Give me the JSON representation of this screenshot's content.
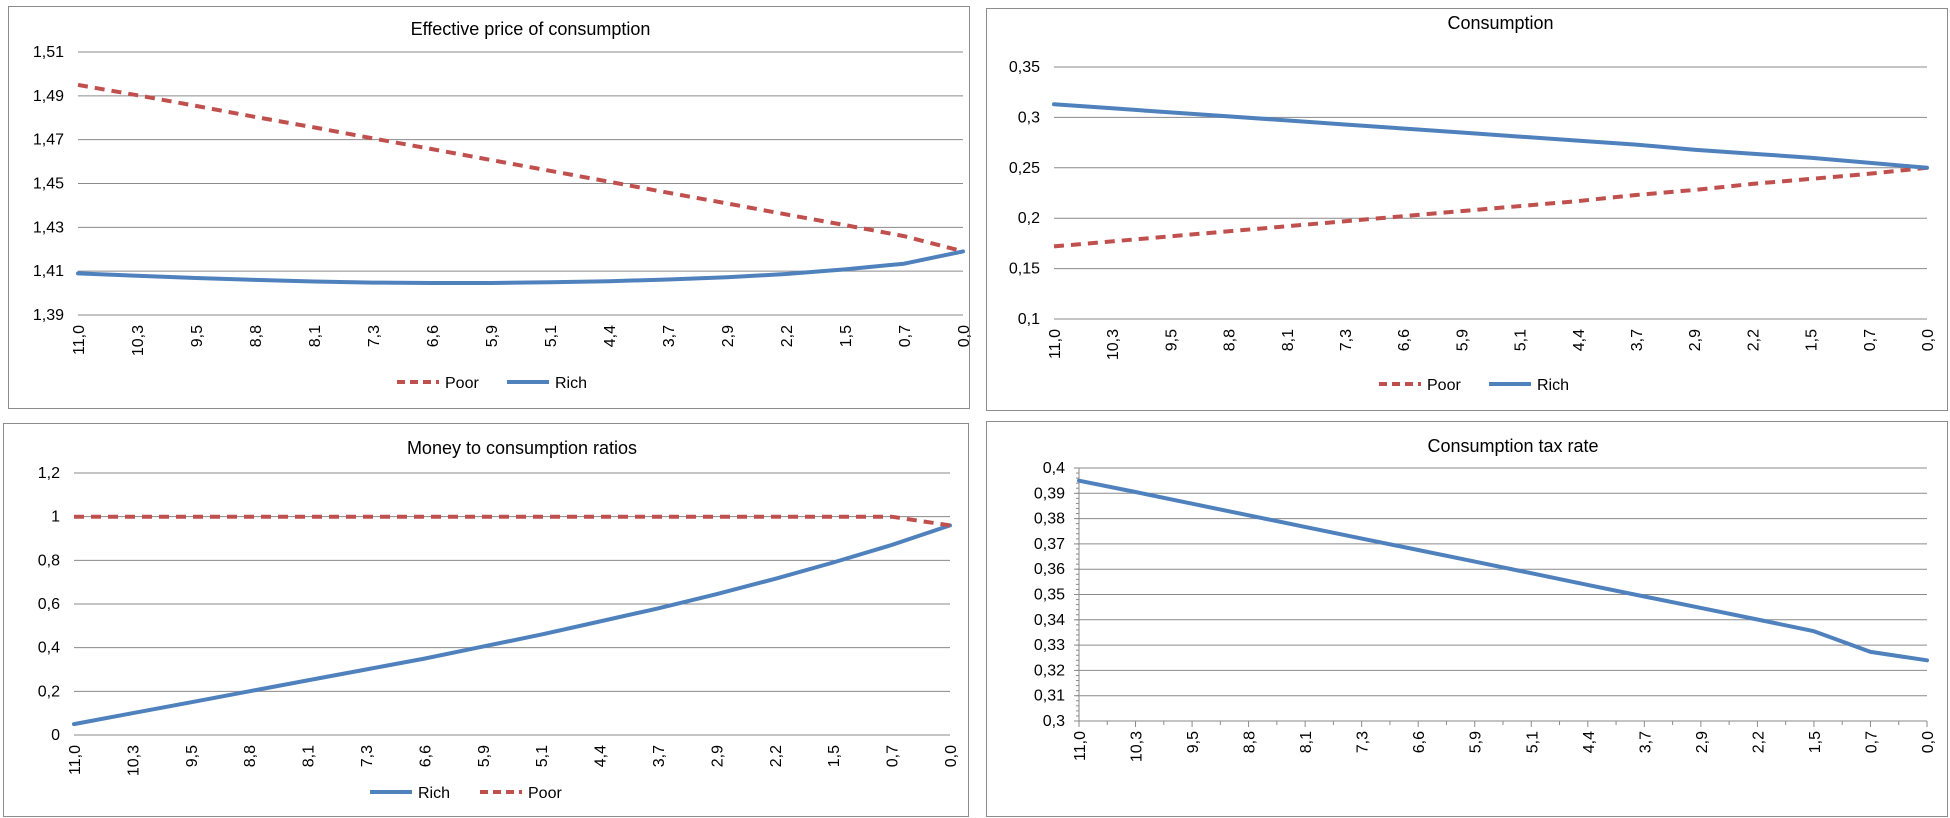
{
  "chart_data": [
    {
      "type": "line",
      "title": "Effective price of consumption",
      "categories": [
        "11,0",
        "10,3",
        "9,5",
        "8,8",
        "8,1",
        "7,3",
        "6,6",
        "5,9",
        "5,1",
        "4,4",
        "3,7",
        "2,9",
        "2,2",
        "1,5",
        "0,7",
        "0,0"
      ],
      "ylim": [
        1.39,
        1.51
      ],
      "yticks": [
        "1,39",
        "1,41",
        "1,43",
        "1,45",
        "1,47",
        "1,49",
        "1,51"
      ],
      "grid": true,
      "legend_position": "bottom",
      "series": [
        {
          "name": "Poor",
          "style": "dashed",
          "color": "#c0504d",
          "values": [
            1.495,
            1.4903,
            1.4854,
            1.4804,
            1.4756,
            1.4706,
            1.4657,
            1.4607,
            1.4558,
            1.4508,
            1.4458,
            1.4409,
            1.4359,
            1.431,
            1.426,
            1.419
          ]
        },
        {
          "name": "Rich",
          "style": "solid",
          "color": "#4f81bd",
          "values": [
            1.409,
            1.4079,
            1.4069,
            1.406,
            1.4053,
            1.4048,
            1.4046,
            1.4046,
            1.4049,
            1.4054,
            1.4062,
            1.4072,
            1.4087,
            1.4108,
            1.4134,
            1.419
          ]
        }
      ]
    },
    {
      "type": "line",
      "title": "Consumption",
      "categories": [
        "11,0",
        "10,3",
        "9,5",
        "8,8",
        "8,1",
        "7,3",
        "6,6",
        "5,9",
        "5,1",
        "4,4",
        "3,7",
        "2,9",
        "2,2",
        "1,5",
        "0,7",
        "0,0"
      ],
      "ylim": [
        0.1,
        0.35
      ],
      "yticks": [
        "0,1",
        "0,15",
        "0,2",
        "0,25",
        "0,3",
        "0,35"
      ],
      "grid": true,
      "legend_position": "bottom",
      "series": [
        {
          "name": "Poor",
          "style": "dashed",
          "color": "#c0504d",
          "values": [
            0.172,
            0.177,
            0.182,
            0.187,
            0.192,
            0.197,
            0.202,
            0.207,
            0.212,
            0.217,
            0.223,
            0.228,
            0.234,
            0.239,
            0.244,
            0.25
          ]
        },
        {
          "name": "Rich",
          "style": "solid",
          "color": "#4f81bd",
          "values": [
            0.313,
            0.309,
            0.305,
            0.301,
            0.297,
            0.293,
            0.289,
            0.285,
            0.281,
            0.277,
            0.273,
            0.268,
            0.264,
            0.26,
            0.255,
            0.25
          ]
        }
      ]
    },
    {
      "type": "line",
      "title": "Money to consumption ratios",
      "categories": [
        "11,0",
        "10,3",
        "9,5",
        "8,8",
        "8,1",
        "7,3",
        "6,6",
        "5,9",
        "5,1",
        "4,4",
        "3,7",
        "2,9",
        "2,2",
        "1,5",
        "0,7",
        "0,0"
      ],
      "ylim": [
        0,
        1.2
      ],
      "yticks": [
        "0",
        "0,2",
        "0,4",
        "0,6",
        "0,8",
        "1",
        "1,2"
      ],
      "grid": true,
      "legend_position": "bottom",
      "series": [
        {
          "name": "Rich",
          "style": "solid",
          "color": "#4f81bd",
          "values": [
            0.05,
            0.1,
            0.15,
            0.2,
            0.25,
            0.3,
            0.35,
            0.405,
            0.46,
            0.52,
            0.58,
            0.645,
            0.715,
            0.79,
            0.87,
            0.96
          ]
        },
        {
          "name": "Poor",
          "style": "dashed",
          "color": "#c0504d",
          "values": [
            1,
            1,
            1,
            1,
            1,
            1,
            1,
            1,
            1,
            1,
            1,
            1,
            1,
            1,
            1,
            0.96
          ]
        }
      ]
    },
    {
      "type": "line",
      "title": "Consumption tax rate",
      "categories": [
        "11,0",
        "10,3",
        "9,5",
        "8,8",
        "8,1",
        "7,3",
        "6,6",
        "5,9",
        "5,1",
        "4,4",
        "3,7",
        "2,9",
        "2,2",
        "1,5",
        "0,7",
        "0,0"
      ],
      "ylim": [
        0.3,
        0.4
      ],
      "yticks": [
        "0,3",
        "0,31",
        "0,32",
        "0,33",
        "0,34",
        "0,35",
        "0,36",
        "0,37",
        "0,38",
        "0,39",
        "0,4"
      ],
      "grid": true,
      "legend_position": "none",
      "series": [
        {
          "style": "solid",
          "color": "#4f81bd",
          "values": [
            0.395,
            0.3905,
            0.3859,
            0.3813,
            0.3767,
            0.3721,
            0.3676,
            0.363,
            0.3584,
            0.3538,
            0.3492,
            0.3447,
            0.3401,
            0.3355,
            0.3273,
            0.324
          ]
        }
      ]
    }
  ]
}
